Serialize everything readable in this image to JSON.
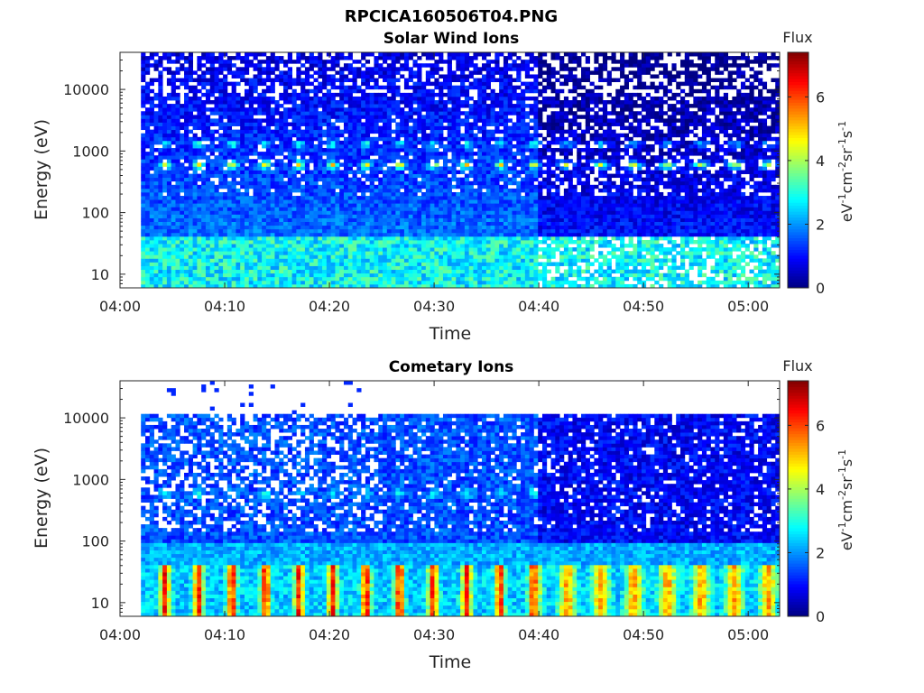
{
  "figure_title": "RPCICA160506T04.PNG",
  "colorscale": [
    "#000080",
    "#0000ff",
    "#0080ff",
    "#00ffff",
    "#80ff80",
    "#ffff00",
    "#ff8000",
    "#ff0000",
    "#800000"
  ],
  "chart_data": [
    {
      "type": "heatmap",
      "title": "Solar Wind Ions",
      "xlabel": "Time",
      "ylabel": "Energy (eV)",
      "x_ticks": [
        "04:00",
        "04:10",
        "04:20",
        "04:30",
        "04:40",
        "04:50",
        "05:00"
      ],
      "x_range": [
        "04:00",
        "05:03"
      ],
      "data_start": "04:02",
      "y_scale": "log",
      "y_ticks": [
        "10",
        "100",
        "1000",
        "10000"
      ],
      "y_range": [
        6,
        40000
      ],
      "colorbar": {
        "label_top": "Flux",
        "label": "eV-1cm-2sr-1s-1",
        "ticks": [
          "0",
          "2",
          "4",
          "6"
        ],
        "range": [
          0,
          7.4
        ]
      },
      "features": {
        "pulse_period_min": 3.2,
        "pulse_count": 19,
        "main_band_energy_eV": 600,
        "secondary_band_energy_eV": 1300,
        "pulse_peak_flux": 4.5,
        "low_energy_band_eV": [
          6,
          40
        ],
        "low_energy_flux": 2.8,
        "background_flux_early": 1.6,
        "background_flux_late": 0.9
      }
    },
    {
      "type": "heatmap",
      "title": "Cometary Ions",
      "xlabel": "Time",
      "ylabel": "Energy (eV)",
      "x_ticks": [
        "04:00",
        "04:10",
        "04:20",
        "04:30",
        "04:40",
        "04:50",
        "05:00"
      ],
      "x_range": [
        "04:00",
        "05:03"
      ],
      "data_start": "04:02",
      "y_scale": "log",
      "y_ticks": [
        "10",
        "100",
        "1000",
        "10000"
      ],
      "y_range": [
        6,
        40000
      ],
      "colorbar": {
        "label_top": "Flux",
        "label": "eV-1cm-2sr-1s-1",
        "ticks": [
          "0",
          "2",
          "4",
          "6"
        ],
        "range": [
          0,
          7.4
        ]
      },
      "features": {
        "pulse_period_min": 3.2,
        "pulse_count": 19,
        "main_band_energy_eV": [
          10,
          40
        ],
        "pulse_peak_flux": 6.3,
        "pulse_peak_flux_late": 5.2,
        "faint_band_energy_eV": 600,
        "faint_band_flux": 2.0,
        "upper_cutoff_eV": 11500,
        "sparse_high_energy_until": "04:24",
        "background_flux_early": 1.5,
        "background_flux_late": 0.9
      }
    }
  ]
}
